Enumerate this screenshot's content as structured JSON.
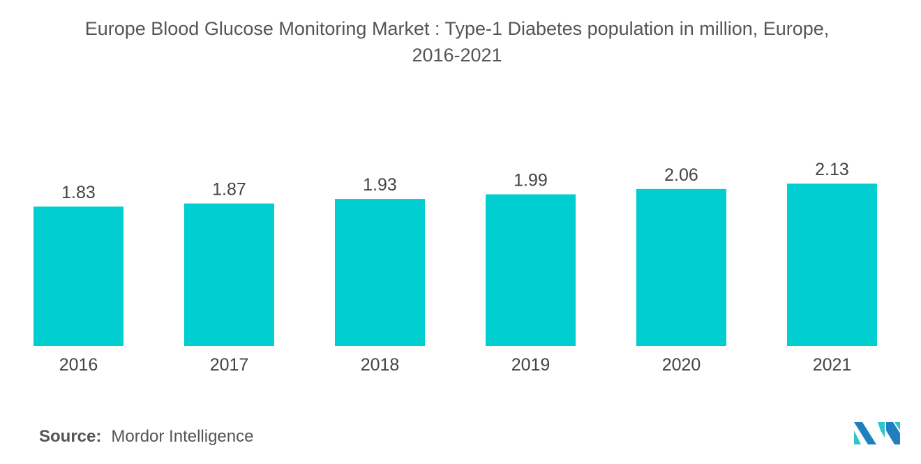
{
  "chart_data": {
    "type": "bar",
    "title": "Europe Blood Glucose Monitoring Market : Type-1 Diabetes population in million, Europe, 2016-2021",
    "title_lines": [
      "Europe Blood Glucose Monitoring Market : Type-1 Diabetes population in million, Europe,",
      "2016-2021"
    ],
    "categories": [
      "2016",
      "2017",
      "2018",
      "2019",
      "2020",
      "2021"
    ],
    "values": [
      1.83,
      1.87,
      1.93,
      1.99,
      2.06,
      2.13
    ],
    "data_labels": [
      "1.83",
      "1.87",
      "1.93",
      "1.99",
      "2.06",
      "2.13"
    ],
    "xlabel": "",
    "ylabel": "",
    "ylim": [
      0,
      2.13
    ],
    "grid": false,
    "bar_color": "#00CED1"
  },
  "source": {
    "label": "Source:",
    "value": "Mordor Intelligence"
  },
  "logo": {
    "text": "Mordor Intelligence",
    "colors": [
      "#1F7FC0",
      "#2CC5C9"
    ]
  }
}
